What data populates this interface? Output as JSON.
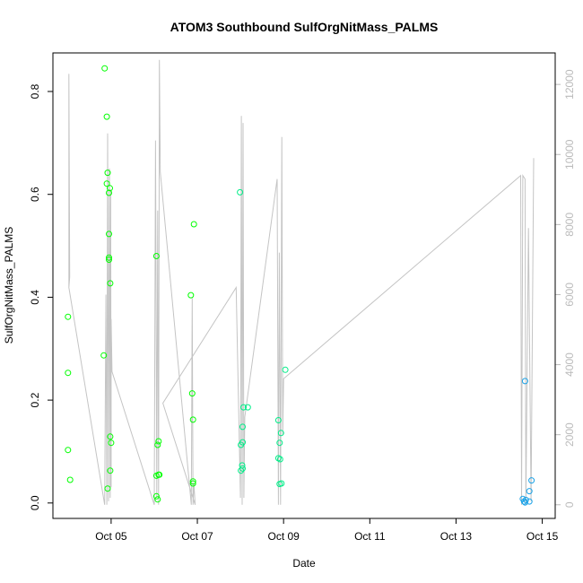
{
  "chart_data": {
    "type": "scatter",
    "title": "ATOM3 Southbound SulfOrgNitMass_PALMS",
    "xlabel": "Date",
    "ylabel": "SulfOrgNitMass_PALMS",
    "xlim": [
      3.65,
      15.3
    ],
    "ylim": [
      -0.03,
      0.875
    ],
    "x_ticks": [
      {
        "value": 5,
        "label": "Oct 05"
      },
      {
        "value": 7,
        "label": "Oct 07"
      },
      {
        "value": 9,
        "label": "Oct 09"
      },
      {
        "value": 11,
        "label": "Oct 11"
      },
      {
        "value": 13,
        "label": "Oct 13"
      },
      {
        "value": 15,
        "label": "Oct 15"
      }
    ],
    "y_ticks": [
      0.0,
      0.2,
      0.4,
      0.6,
      0.8
    ],
    "y_tick_labels": [
      "0.0",
      "0.2",
      "0.4",
      "0.6",
      "0.8"
    ],
    "y2_lim": [
      -390,
      12900
    ],
    "y2_ticks": [
      0,
      2000,
      4000,
      6000,
      8000,
      10000,
      12000
    ],
    "y2_tick_labels": [
      "0",
      "2000",
      "4000",
      "6000",
      "8000",
      "10000",
      "12000"
    ],
    "grid": false,
    "series": [
      {
        "color": "#00ff00",
        "points": [
          [
            4.0,
            0.362
          ],
          [
            4.0,
            0.253
          ],
          [
            4.0,
            0.103
          ],
          [
            4.05,
            0.045
          ],
          [
            4.85,
            0.845
          ],
          [
            4.9,
            0.751
          ],
          [
            4.92,
            0.642
          ],
          [
            4.9,
            0.621
          ],
          [
            4.97,
            0.612
          ],
          [
            4.95,
            0.603
          ],
          [
            4.95,
            0.523
          ],
          [
            4.95,
            0.477
          ],
          [
            4.95,
            0.473
          ],
          [
            4.98,
            0.427
          ],
          [
            4.83,
            0.287
          ],
          [
            4.98,
            0.129
          ],
          [
            5.0,
            0.117
          ],
          [
            4.98,
            0.063
          ],
          [
            4.92,
            0.028
          ],
          [
            6.05,
            0.48
          ],
          [
            6.1,
            0.12
          ],
          [
            6.08,
            0.113
          ],
          [
            6.05,
            0.053
          ],
          [
            6.1,
            0.055
          ],
          [
            6.12,
            0.055
          ],
          [
            6.05,
            0.013
          ],
          [
            6.08,
            0.007
          ],
          [
            6.85,
            0.404
          ],
          [
            6.92,
            0.542
          ],
          [
            6.88,
            0.213
          ],
          [
            6.9,
            0.162
          ],
          [
            6.9,
            0.042
          ],
          [
            6.9,
            0.038
          ]
        ]
      },
      {
        "color": "#00ee88",
        "points": [
          [
            7.99,
            0.604
          ],
          [
            8.07,
            0.186
          ],
          [
            8.05,
            0.148
          ],
          [
            8.17,
            0.186
          ],
          [
            8.05,
            0.118
          ],
          [
            8.01,
            0.113
          ],
          [
            8.04,
            0.073
          ],
          [
            8.01,
            0.063
          ],
          [
            8.05,
            0.067
          ],
          [
            8.88,
            0.161
          ],
          [
            8.94,
            0.136
          ],
          [
            8.91,
            0.117
          ],
          [
            8.88,
            0.087
          ],
          [
            8.92,
            0.085
          ],
          [
            8.91,
            0.037
          ],
          [
            8.95,
            0.038
          ],
          [
            9.04,
            0.259
          ]
        ]
      },
      {
        "color": "#1ba3e8",
        "points": [
          [
            14.6,
            0.237
          ],
          [
            14.55,
            0.008
          ],
          [
            14.58,
            0.003
          ],
          [
            14.6,
            0.001
          ],
          [
            14.62,
            0.006
          ],
          [
            14.7,
            0.023
          ],
          [
            14.7,
            0.003
          ],
          [
            14.75,
            0.044
          ]
        ]
      }
    ],
    "altitude_line": {
      "color": "#c4c4c4",
      "axis": "right",
      "points": [
        [
          4.02,
          6200
        ],
        [
          4.02,
          12300
        ],
        [
          4.04,
          6500
        ],
        [
          4.02,
          6200
        ],
        [
          4.85,
          0
        ],
        [
          4.88,
          6000
        ],
        [
          4.9,
          0
        ],
        [
          4.92,
          10600
        ],
        [
          4.94,
          100
        ],
        [
          4.96,
          9600
        ],
        [
          4.98,
          200
        ],
        [
          4.99,
          9000
        ],
        [
          5.0,
          500
        ],
        [
          5.0,
          5300
        ],
        [
          5.02,
          3800
        ],
        [
          6.0,
          0
        ],
        [
          6.03,
          10400
        ],
        [
          6.06,
          200
        ],
        [
          6.08,
          8400
        ],
        [
          6.1,
          0
        ],
        [
          6.12,
          12700
        ],
        [
          6.14,
          9500
        ],
        [
          6.86,
          0
        ],
        [
          6.88,
          5900
        ],
        [
          6.9,
          0
        ],
        [
          6.92,
          600
        ],
        [
          6.95,
          0
        ],
        [
          6.2,
          2900
        ],
        [
          7.9,
          6200
        ],
        [
          8.0,
          200
        ],
        [
          8.02,
          11100
        ],
        [
          8.04,
          0
        ],
        [
          8.06,
          10900
        ],
        [
          8.08,
          200
        ],
        [
          8.1,
          2500
        ],
        [
          8.85,
          9300
        ],
        [
          8.88,
          0
        ],
        [
          8.9,
          7200
        ],
        [
          8.93,
          0
        ],
        [
          8.96,
          10500
        ],
        [
          8.98,
          2000
        ],
        [
          9.0,
          3600
        ],
        [
          14.5,
          9400
        ],
        [
          14.52,
          0
        ],
        [
          14.55,
          9400
        ],
        [
          14.6,
          9300
        ],
        [
          14.62,
          0
        ],
        [
          14.68,
          7900
        ],
        [
          14.74,
          100
        ],
        [
          14.8,
          9900
        ]
      ]
    }
  }
}
